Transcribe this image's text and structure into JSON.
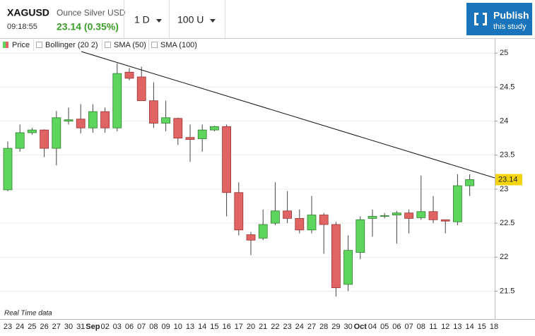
{
  "header": {
    "symbol": "XAGUSD",
    "description": "Ounce Silver USD",
    "time": "09:18:55",
    "quote": "23.14 (0.35%)",
    "interval": "1 D",
    "count": "100 U",
    "publish": "Publish",
    "publish_sub": "this study"
  },
  "legend": [
    "Price",
    "Bollinger (20 2)",
    "SMA (50)",
    "SMA (100)"
  ],
  "footnote": "Real Time data",
  "chart_data": {
    "type": "candlestick",
    "categories": [
      "23",
      "24",
      "25",
      "26",
      "27",
      "30",
      "31",
      "Sep",
      "02",
      "03",
      "06",
      "07",
      "08",
      "09",
      "10",
      "13",
      "14",
      "15",
      "16",
      "17",
      "20",
      "21",
      "22",
      "23",
      "24",
      "27",
      "28",
      "29",
      "30",
      "Oct",
      "04",
      "05",
      "06",
      "07",
      "08",
      "11",
      "12",
      "13",
      "14",
      "15",
      "18"
    ],
    "open": [
      22.99,
      23.6,
      23.83,
      23.87,
      23.6,
      24.0,
      24.03,
      23.9,
      24.14,
      23.9,
      24.72,
      24.65,
      24.3,
      23.97,
      24.04,
      23.76,
      23.74,
      23.87,
      23.92,
      22.95,
      22.33,
      22.28,
      22.5,
      22.68,
      22.57,
      22.4,
      22.62,
      22.48,
      21.6,
      22.07,
      22.57,
      22.6,
      22.62,
      22.65,
      22.58,
      22.67,
      22.55,
      22.52,
      23.05,
      null,
      null
    ],
    "high": [
      23.7,
      23.95,
      23.9,
      23.88,
      24.15,
      24.2,
      24.25,
      24.25,
      24.2,
      24.85,
      24.78,
      24.8,
      24.57,
      24.3,
      24.05,
      23.95,
      23.95,
      23.93,
      23.95,
      23.1,
      22.37,
      22.7,
      23.1,
      22.97,
      22.7,
      22.9,
      22.65,
      22.52,
      22.32,
      22.6,
      22.7,
      22.65,
      22.68,
      22.7,
      23.2,
      22.9,
      22.55,
      23.22,
      23.22,
      null,
      null
    ],
    "low": [
      22.97,
      23.55,
      23.8,
      23.47,
      23.35,
      23.95,
      23.82,
      23.83,
      23.83,
      23.85,
      24.6,
      24.3,
      23.9,
      23.85,
      23.65,
      23.4,
      23.55,
      23.85,
      22.6,
      22.32,
      22.03,
      22.25,
      22.47,
      22.5,
      22.35,
      22.35,
      22.05,
      21.42,
      21.5,
      21.97,
      22.3,
      22.57,
      22.2,
      22.35,
      22.55,
      22.5,
      22.35,
      22.47,
      22.9,
      null,
      null
    ],
    "close": [
      23.6,
      23.83,
      23.87,
      23.6,
      24.05,
      24.02,
      23.9,
      24.14,
      23.9,
      24.7,
      24.63,
      24.3,
      23.97,
      24.05,
      23.75,
      23.73,
      23.87,
      23.92,
      22.95,
      22.4,
      22.25,
      22.48,
      22.68,
      22.57,
      22.4,
      22.62,
      22.48,
      21.55,
      22.1,
      22.55,
      22.6,
      22.61,
      22.65,
      22.57,
      22.67,
      22.55,
      22.53,
      23.05,
      23.14,
      null,
      null
    ],
    "up_color": "#5ed65e",
    "down_color": "#e06464",
    "ylim": [
      21.09,
      25.21
    ],
    "yticks": [
      21.5,
      22,
      22.5,
      23,
      23.5,
      24,
      24.5,
      25
    ],
    "grid": true
  }
}
